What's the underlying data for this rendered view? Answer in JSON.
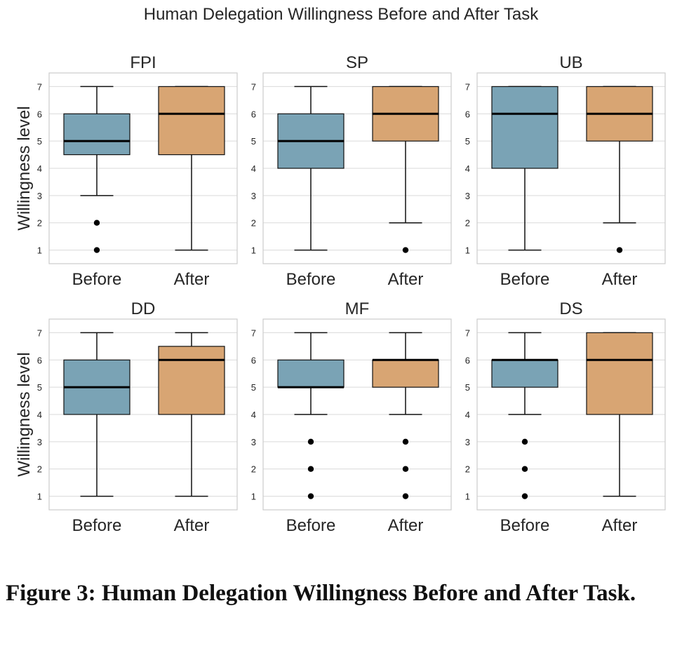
{
  "suptitle": "Human Delegation Willingness Before and After Task",
  "caption": "Figure 3: Human Delegation Willingness Before and After Task.",
  "colors": {
    "before": "#7aa3b5",
    "after": "#d8a573",
    "grid": "#d9d9d9",
    "frame": "#cccccc"
  },
  "chart_data": [
    {
      "type": "box",
      "title": "FPI",
      "ylabel": "Willingness level",
      "ylim": [
        0.5,
        7.5
      ],
      "yticks": [
        1,
        2,
        3,
        4,
        5,
        6,
        7
      ],
      "grid": true,
      "categories": [
        "Before",
        "After"
      ],
      "boxes": [
        {
          "category": "Before",
          "whisker_low": 3,
          "q1": 4.5,
          "median": 5,
          "q3": 6,
          "whisker_high": 7,
          "outliers": [
            1,
            2
          ]
        },
        {
          "category": "After",
          "whisker_low": 1,
          "q1": 4.5,
          "median": 6,
          "q3": 7,
          "whisker_high": 7,
          "outliers": []
        }
      ]
    },
    {
      "type": "box",
      "title": "SP",
      "ylabel": "",
      "ylim": [
        0.5,
        7.5
      ],
      "yticks": [
        1,
        2,
        3,
        4,
        5,
        6,
        7
      ],
      "grid": true,
      "categories": [
        "Before",
        "After"
      ],
      "boxes": [
        {
          "category": "Before",
          "whisker_low": 1,
          "q1": 4,
          "median": 5,
          "q3": 6,
          "whisker_high": 7,
          "outliers": []
        },
        {
          "category": "After",
          "whisker_low": 2,
          "q1": 5,
          "median": 6,
          "q3": 7,
          "whisker_high": 7,
          "outliers": [
            1
          ]
        }
      ]
    },
    {
      "type": "box",
      "title": "UB",
      "ylabel": "",
      "ylim": [
        0.5,
        7.5
      ],
      "yticks": [
        1,
        2,
        3,
        4,
        5,
        6,
        7
      ],
      "grid": true,
      "categories": [
        "Before",
        "After"
      ],
      "boxes": [
        {
          "category": "Before",
          "whisker_low": 1,
          "q1": 4,
          "median": 6,
          "q3": 7,
          "whisker_high": 7,
          "outliers": []
        },
        {
          "category": "After",
          "whisker_low": 2,
          "q1": 5,
          "median": 6,
          "q3": 7,
          "whisker_high": 7,
          "outliers": [
            1
          ]
        }
      ]
    },
    {
      "type": "box",
      "title": "DD",
      "ylabel": "Willingness level",
      "ylim": [
        0.5,
        7.5
      ],
      "yticks": [
        1,
        2,
        3,
        4,
        5,
        6,
        7
      ],
      "grid": true,
      "categories": [
        "Before",
        "After"
      ],
      "boxes": [
        {
          "category": "Before",
          "whisker_low": 1,
          "q1": 4,
          "median": 5,
          "q3": 6,
          "whisker_high": 7,
          "outliers": []
        },
        {
          "category": "After",
          "whisker_low": 1,
          "q1": 4,
          "median": 6,
          "q3": 6.5,
          "whisker_high": 7,
          "outliers": []
        }
      ]
    },
    {
      "type": "box",
      "title": "MF",
      "ylabel": "",
      "ylim": [
        0.5,
        7.5
      ],
      "yticks": [
        1,
        2,
        3,
        4,
        5,
        6,
        7
      ],
      "grid": true,
      "categories": [
        "Before",
        "After"
      ],
      "boxes": [
        {
          "category": "Before",
          "whisker_low": 4,
          "q1": 5,
          "median": 5,
          "q3": 6,
          "whisker_high": 7,
          "outliers": [
            1,
            2,
            3
          ]
        },
        {
          "category": "After",
          "whisker_low": 4,
          "q1": 5,
          "median": 6,
          "q3": 6,
          "whisker_high": 7,
          "outliers": [
            1,
            2,
            3
          ]
        }
      ]
    },
    {
      "type": "box",
      "title": "DS",
      "ylabel": "",
      "ylim": [
        0.5,
        7.5
      ],
      "yticks": [
        1,
        2,
        3,
        4,
        5,
        6,
        7
      ],
      "grid": true,
      "categories": [
        "Before",
        "After"
      ],
      "boxes": [
        {
          "category": "Before",
          "whisker_low": 4,
          "q1": 5,
          "median": 6,
          "q3": 6,
          "whisker_high": 7,
          "outliers": [
            1,
            2,
            3
          ]
        },
        {
          "category": "After",
          "whisker_low": 1,
          "q1": 4,
          "median": 6,
          "q3": 7,
          "whisker_high": 7,
          "outliers": []
        }
      ]
    }
  ]
}
